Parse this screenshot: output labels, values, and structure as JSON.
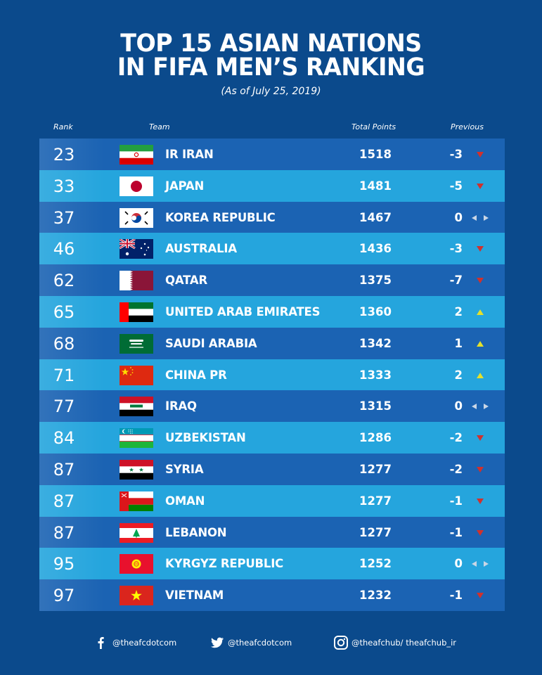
{
  "title_line1": "TOP 15 ASIAN NATIONS",
  "title_line2": "IN FIFA MEN’S  RANKING",
  "subtitle": "(As of July 25, 2019)",
  "headers": {
    "rank": "Rank",
    "team": "Team",
    "points": "Total Points",
    "previous": "Previous"
  },
  "colors": {
    "background": "#0b4a8c",
    "row_dark": "#1b63b3",
    "row_light": "#25a5dd",
    "down": "#d0312d",
    "up": "#e4e02b",
    "same": "#c9d6e6"
  },
  "rows": [
    {
      "rank": "23",
      "team": "IR IRAN",
      "flag": "iran-flag-icon",
      "points": "1518",
      "change": "-3",
      "trend": "down"
    },
    {
      "rank": "33",
      "team": "JAPAN",
      "flag": "japan-flag-icon",
      "points": "1481",
      "change": "-5",
      "trend": "down"
    },
    {
      "rank": "37",
      "team": "KOREA REPUBLIC",
      "flag": "korea-flag-icon",
      "points": "1467",
      "change": "0",
      "trend": "same"
    },
    {
      "rank": "46",
      "team": "AUSTRALIA",
      "flag": "australia-flag-icon",
      "points": "1436",
      "change": "-3",
      "trend": "down"
    },
    {
      "rank": "62",
      "team": "QATAR",
      "flag": "qatar-flag-icon",
      "points": "1375",
      "change": "-7",
      "trend": "down"
    },
    {
      "rank": "65",
      "team": "UNITED ARAB EMIRATES",
      "flag": "uae-flag-icon",
      "points": "1360",
      "change": "2",
      "trend": "up"
    },
    {
      "rank": "68",
      "team": "SAUDI ARABIA",
      "flag": "saudi-flag-icon",
      "points": "1342",
      "change": "1",
      "trend": "up"
    },
    {
      "rank": "71",
      "team": "CHINA PR",
      "flag": "china-flag-icon",
      "points": "1333",
      "change": "2",
      "trend": "up"
    },
    {
      "rank": "77",
      "team": "IRAQ",
      "flag": "iraq-flag-icon",
      "points": "1315",
      "change": "0",
      "trend": "same"
    },
    {
      "rank": "84",
      "team": "UZBEKISTAN",
      "flag": "uzbekistan-flag-icon",
      "points": "1286",
      "change": "-2",
      "trend": "down"
    },
    {
      "rank": "87",
      "team": "SYRIA",
      "flag": "syria-flag-icon",
      "points": "1277",
      "change": "-2",
      "trend": "down"
    },
    {
      "rank": "87",
      "team": "OMAN",
      "flag": "oman-flag-icon",
      "points": "1277",
      "change": "-1",
      "trend": "down"
    },
    {
      "rank": "87",
      "team": "LEBANON",
      "flag": "lebanon-flag-icon",
      "points": "1277",
      "change": "-1",
      "trend": "down"
    },
    {
      "rank": "95",
      "team": "KYRGYZ REPUBLIC",
      "flag": "kyrgyz-flag-icon",
      "points": "1252",
      "change": "0",
      "trend": "same"
    },
    {
      "rank": "97",
      "team": "VIETNAM",
      "flag": "vietnam-flag-icon",
      "points": "1232",
      "change": "-1",
      "trend": "down"
    }
  ],
  "footer": {
    "facebook": "@theafcdotcom",
    "twitter": "@theafcdotcom",
    "instagram": "@theafchub/ theafchub_ir"
  }
}
